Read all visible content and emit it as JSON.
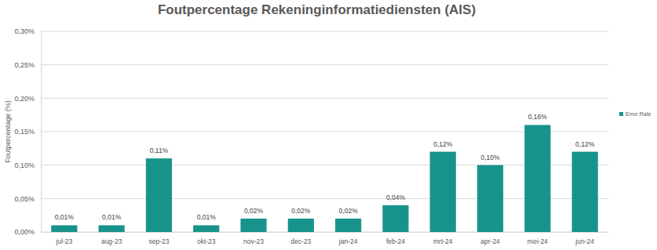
{
  "chart_data": {
    "type": "bar",
    "title": "Foutpercentage Rekeninginformatiediensten (AIS)",
    "y_label": "Foutpercentage (%)",
    "categories": [
      "jul-23",
      "aug-23",
      "sep-23",
      "okt-23",
      "nov-23",
      "dec-23",
      "jan-24",
      "feb-24",
      "mrt-24",
      "apr-24",
      "mei-24",
      "jun-24"
    ],
    "series": [
      {
        "name": "Error Rate",
        "color": "#17938b",
        "values": [
          0.01,
          0.01,
          0.11,
          0.01,
          0.02,
          0.02,
          0.02,
          0.04,
          0.12,
          0.1,
          0.16,
          0.12
        ],
        "value_labels": [
          "0,01%",
          "0,01%",
          "0,11%",
          "0,01%",
          "0,02%",
          "0,02%",
          "0,02%",
          "0,04%",
          "0,12%",
          "0,10%",
          "0,16%",
          "0,12%"
        ]
      }
    ],
    "ylim": [
      0,
      0.3
    ],
    "yticks": [
      {
        "value": 0,
        "label": "0,00%"
      },
      {
        "value": 0.05,
        "label": "0,05%"
      },
      {
        "value": 0.1,
        "label": "0,10%"
      },
      {
        "value": 0.15,
        "label": "0,15%"
      },
      {
        "value": 0.2,
        "label": "0,20%"
      },
      {
        "value": 0.25,
        "label": "0,25%"
      },
      {
        "value": 0.3,
        "label": "0,30%"
      }
    ],
    "grid": true,
    "data_labels": true,
    "legend": "right"
  }
}
